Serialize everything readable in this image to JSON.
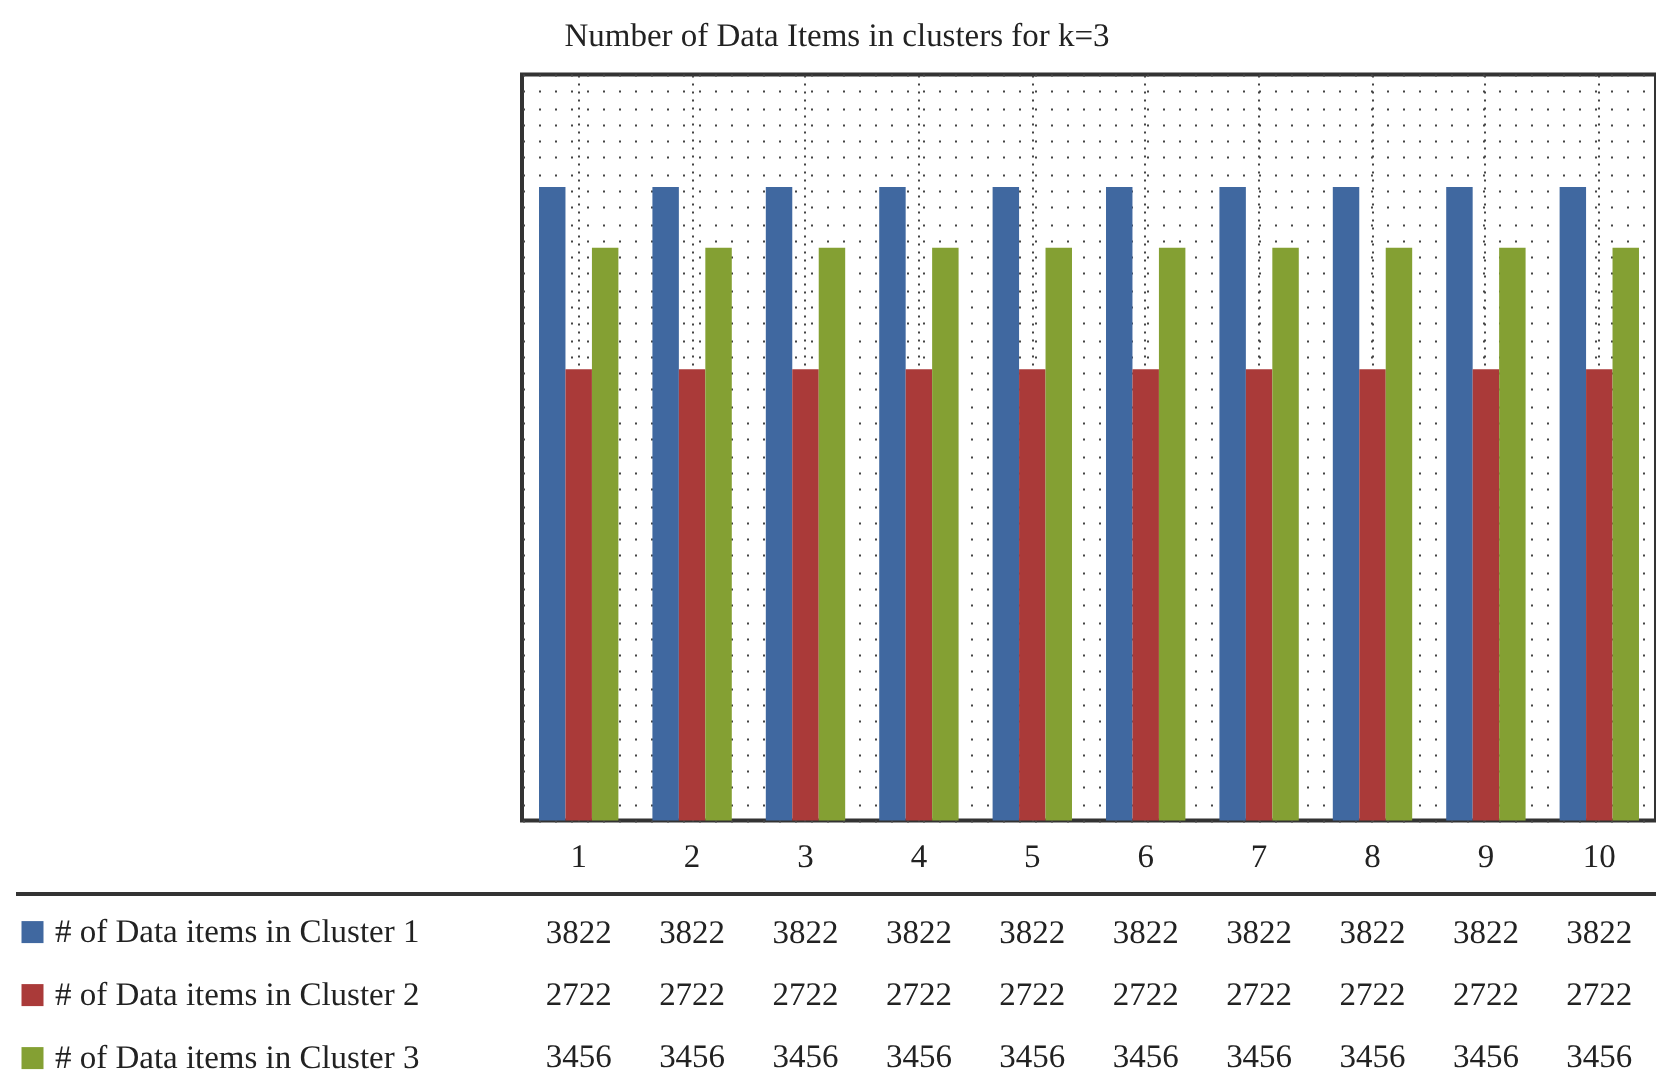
{
  "chart_data": {
    "type": "bar",
    "title": "Number of Data Items in clusters for k=3",
    "categories": [
      "1",
      "2",
      "3",
      "4",
      "5",
      "6",
      "7",
      "8",
      "9",
      "10"
    ],
    "series": [
      {
        "name": "# of Data items in Cluster 1",
        "color": "#4068a0",
        "values": [
          3822,
          3822,
          3822,
          3822,
          3822,
          3822,
          3822,
          3822,
          3822,
          3822
        ]
      },
      {
        "name": "# of Data items in Cluster 2",
        "color": "#aa3a39",
        "values": [
          2722,
          2722,
          2722,
          2722,
          2722,
          2722,
          2722,
          2722,
          2722,
          2722
        ]
      },
      {
        "name": "# of Data items in Cluster 3",
        "color": "#84a033",
        "values": [
          3456,
          3456,
          3456,
          3456,
          3456,
          3456,
          3456,
          3456,
          3456,
          3456
        ]
      }
    ],
    "ylim": [
      0,
      4500
    ],
    "yticks": [
      0,
      100,
      200,
      300,
      400,
      500,
      600,
      700,
      800,
      900,
      1000,
      1100,
      1200,
      1300,
      1400,
      1500,
      1600,
      1700,
      1800,
      1900,
      2000,
      2100,
      2200,
      2300,
      2400,
      2500,
      2600,
      2700,
      2800,
      2900,
      3000,
      3100,
      3200,
      3300,
      3400,
      3500,
      3600,
      3700,
      3800,
      3900,
      4000,
      4100,
      4200,
      4300,
      4400,
      4500
    ],
    "tick_labels": "x",
    "grid": true,
    "data_labels": true,
    "legend": "bottom left"
  }
}
